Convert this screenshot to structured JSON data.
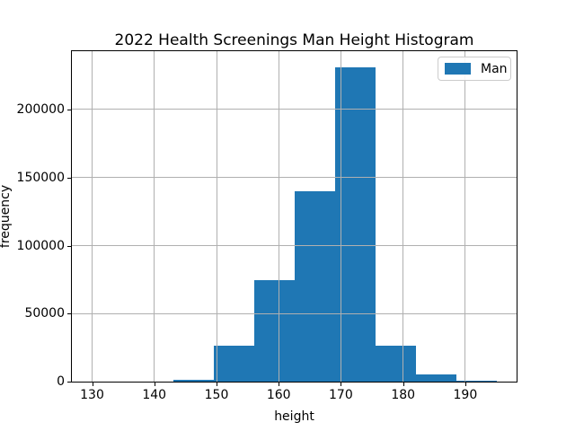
{
  "window": {
    "background": "#ffffff"
  },
  "chart_data": {
    "type": "histogram",
    "title": "2022 Health Screenings Man Height Histogram",
    "xlabel": "height",
    "ylabel": "frequency",
    "legend": {
      "position": "upper right",
      "entries": [
        {
          "label": "Man",
          "color": "#1f77b4"
        }
      ]
    },
    "series": [
      {
        "name": "Man",
        "color": "#1f77b4",
        "bin_edges": [
          130,
          136.5,
          143,
          149.5,
          156,
          162.5,
          169,
          175.5,
          182,
          188.5,
          195
        ],
        "counts": [
          0,
          0,
          1100,
          26100,
          74600,
          139900,
          231200,
          26400,
          5100,
          1000
        ]
      }
    ],
    "xticks": [
      130,
      140,
      150,
      160,
      170,
      180,
      190
    ],
    "yticks": [
      0,
      50000,
      100000,
      150000,
      200000
    ],
    "xlim": [
      126.75,
      198.25
    ],
    "ylim": [
      0,
      242850
    ],
    "grid": true,
    "grid_color": "#b0b0b0",
    "spine_color": "#000000",
    "grid_above_bars": true
  }
}
